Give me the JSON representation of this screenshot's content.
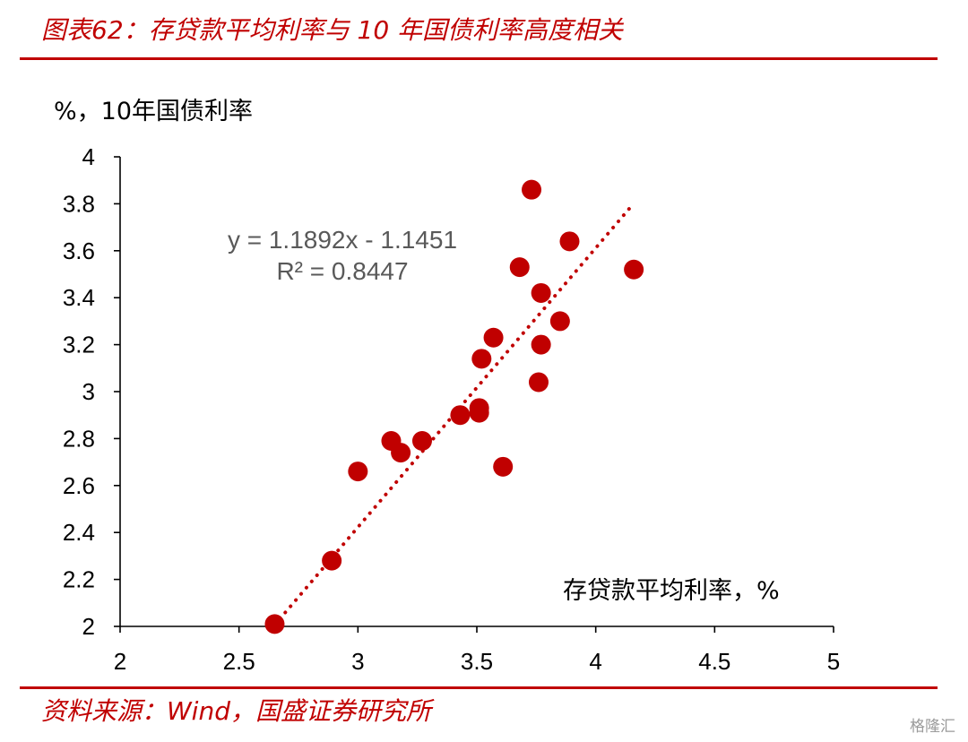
{
  "title": "图表62：存贷款平均利率与 10 年国债利率高度相关",
  "source": "资料来源：Wind，国盛证券研究所",
  "watermark": "格隆汇",
  "colors": {
    "accent": "#c00000",
    "point": "#c00000",
    "trend": "#c00000",
    "equation": "#595959"
  },
  "chart_data": {
    "type": "scatter",
    "title": "",
    "xlabel": "存贷款平均利率，%",
    "ylabel": "%，10年国债利率",
    "xlim": [
      2,
      5
    ],
    "ylim": [
      2,
      4
    ],
    "xticks": [
      "2",
      "2.5",
      "3",
      "3.5",
      "4",
      "4.5",
      "5"
    ],
    "yticks": [
      "2",
      "2.2",
      "2.4",
      "2.6",
      "2.8",
      "3",
      "3.2",
      "3.4",
      "3.6",
      "3.8",
      "4"
    ],
    "grid": false,
    "series": [
      {
        "points": [
          [
            2.65,
            2.01
          ],
          [
            2.89,
            2.28
          ],
          [
            3.0,
            2.66
          ],
          [
            3.14,
            2.79
          ],
          [
            3.18,
            2.74
          ],
          [
            3.27,
            2.79
          ],
          [
            3.43,
            2.9
          ],
          [
            3.51,
            2.91
          ],
          [
            3.51,
            2.93
          ],
          [
            3.52,
            3.14
          ],
          [
            3.57,
            3.23
          ],
          [
            3.61,
            2.68
          ],
          [
            3.68,
            3.53
          ],
          [
            3.73,
            3.86
          ],
          [
            3.76,
            3.04
          ],
          [
            3.77,
            3.2
          ],
          [
            3.77,
            3.42
          ],
          [
            3.85,
            3.3
          ],
          [
            3.89,
            3.64
          ],
          [
            4.16,
            3.52
          ]
        ]
      }
    ],
    "trendline": {
      "type": "linear",
      "slope": 1.1892,
      "intercept": -1.1451,
      "x_range": [
        2.65,
        4.16
      ],
      "equation_label": "y = 1.1892x - 1.1451",
      "r2_label": "R² = 0.8447"
    }
  }
}
